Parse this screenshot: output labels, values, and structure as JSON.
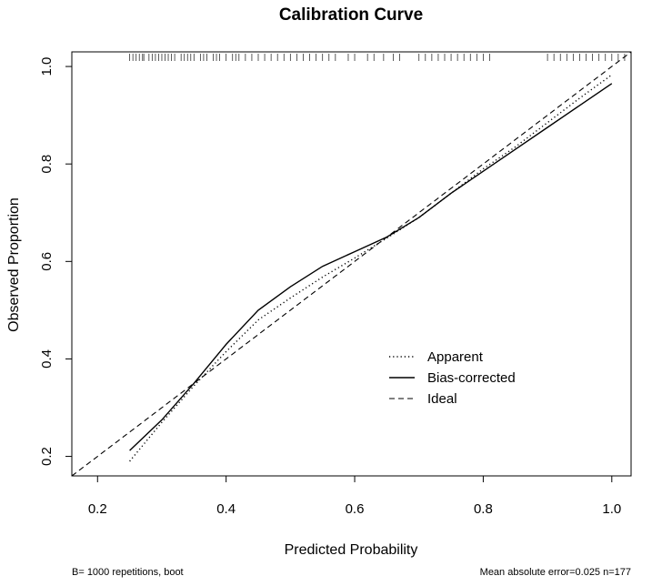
{
  "chart_data": {
    "type": "line",
    "title": "Calibration Curve",
    "xlabel": "Predicted Probability",
    "ylabel": "Observed Proportion",
    "xlim": [
      0.16,
      1.03
    ],
    "ylim": [
      0.16,
      1.03
    ],
    "xticks": [
      0.2,
      0.4,
      0.6,
      0.8,
      1.0
    ],
    "xtick_labels": [
      "0.2",
      "0.4",
      "0.6",
      "0.8",
      "1.0"
    ],
    "yticks": [
      0.2,
      0.4,
      0.6,
      0.8,
      1.0
    ],
    "ytick_labels": [
      "0.2",
      "0.4",
      "0.6",
      "0.8",
      "1.0"
    ],
    "grid": false,
    "legend_position": "bottom-right",
    "series": [
      {
        "name": "Apparent",
        "style": "dotted",
        "x": [
          0.25,
          0.3,
          0.35,
          0.4,
          0.45,
          0.5,
          0.55,
          0.6,
          0.65,
          0.7,
          0.75,
          0.8,
          0.85,
          0.9,
          0.95,
          1.0
        ],
        "y": [
          0.19,
          0.27,
          0.345,
          0.415,
          0.48,
          0.525,
          0.568,
          0.607,
          0.648,
          0.69,
          0.74,
          0.79,
          0.835,
          0.885,
          0.935,
          0.983
        ]
      },
      {
        "name": "Bias-corrected",
        "style": "solid",
        "x": [
          0.25,
          0.3,
          0.35,
          0.4,
          0.45,
          0.5,
          0.55,
          0.6,
          0.65,
          0.7,
          0.75,
          0.8,
          0.85,
          0.9,
          0.95,
          1.0
        ],
        "y": [
          0.212,
          0.275,
          0.35,
          0.43,
          0.5,
          0.548,
          0.59,
          0.62,
          0.65,
          0.69,
          0.74,
          0.785,
          0.83,
          0.875,
          0.92,
          0.965
        ]
      },
      {
        "name": "Ideal",
        "style": "dashed",
        "x": [
          0.16,
          1.03
        ],
        "y": [
          0.16,
          1.03
        ]
      }
    ],
    "rug_x": [
      0.25,
      0.255,
      0.26,
      0.265,
      0.27,
      0.272,
      0.28,
      0.285,
      0.29,
      0.295,
      0.3,
      0.305,
      0.31,
      0.315,
      0.32,
      0.33,
      0.335,
      0.34,
      0.345,
      0.35,
      0.36,
      0.365,
      0.37,
      0.38,
      0.385,
      0.39,
      0.4,
      0.41,
      0.415,
      0.42,
      0.43,
      0.44,
      0.45,
      0.46,
      0.47,
      0.48,
      0.49,
      0.5,
      0.51,
      0.52,
      0.53,
      0.54,
      0.55,
      0.56,
      0.57,
      0.59,
      0.6,
      0.62,
      0.63,
      0.645,
      0.66,
      0.67,
      0.7,
      0.71,
      0.72,
      0.73,
      0.74,
      0.75,
      0.76,
      0.77,
      0.78,
      0.79,
      0.8,
      0.81,
      0.9,
      0.91,
      0.92,
      0.93,
      0.94,
      0.95,
      0.96,
      0.97,
      0.98,
      0.99,
      1.0,
      1.01,
      1.02
    ],
    "legend": [
      "Apparent",
      "Bias-corrected",
      "Ideal"
    ],
    "footnote_left": "B= 1000 repetitions, boot",
    "footnote_right": "Mean absolute error=0.025 n=177"
  }
}
